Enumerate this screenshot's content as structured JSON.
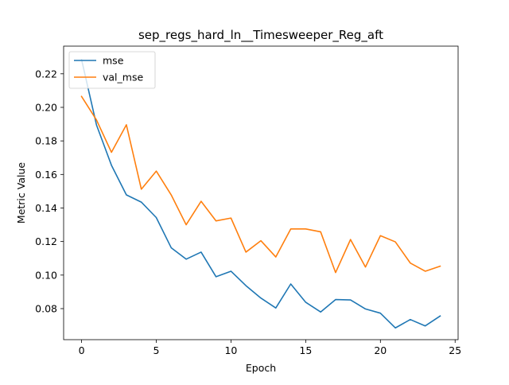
{
  "chart_data": {
    "type": "line",
    "title": "sep_regs_hard_ln__Timesweeper_Reg_aft",
    "xlabel": "Epoch",
    "ylabel": "Metric Value",
    "xlim": [
      -1.2,
      25.2
    ],
    "ylim": [
      0.0615,
      0.2365
    ],
    "xticks": [
      0,
      5,
      10,
      15,
      20,
      25
    ],
    "xtick_labels": [
      "0",
      "5",
      "10",
      "15",
      "20",
      "25"
    ],
    "yticks": [
      0.08,
      0.1,
      0.12,
      0.14,
      0.16,
      0.18,
      0.2,
      0.22
    ],
    "ytick_labels": [
      "0.08",
      "0.10",
      "0.12",
      "0.14",
      "0.16",
      "0.18",
      "0.20",
      "0.22"
    ],
    "grid": false,
    "legend_position": "top-left",
    "x": [
      0,
      1,
      2,
      3,
      4,
      5,
      6,
      7,
      8,
      9,
      10,
      11,
      12,
      13,
      14,
      15,
      16,
      17,
      18,
      19,
      20,
      21,
      22,
      23,
      24
    ],
    "series": [
      {
        "name": "mse",
        "color": "#1f77b4",
        "values": [
          0.2285,
          0.1895,
          0.1655,
          0.1478,
          0.1435,
          0.1343,
          0.1163,
          0.1095,
          0.1137,
          0.099,
          0.1023,
          0.0937,
          0.0863,
          0.0804,
          0.0947,
          0.0838,
          0.078,
          0.0854,
          0.0852,
          0.0798,
          0.0773,
          0.0685,
          0.0735,
          0.0697,
          0.0756
        ]
      },
      {
        "name": "val_mse",
        "color": "#ff7f0e",
        "values": [
          0.2065,
          0.1925,
          0.1732,
          0.1896,
          0.1512,
          0.162,
          0.1478,
          0.13,
          0.144,
          0.1323,
          0.134,
          0.1137,
          0.1205,
          0.1108,
          0.1275,
          0.1275,
          0.1258,
          0.1015,
          0.1212,
          0.1048,
          0.1235,
          0.1198,
          0.1072,
          0.1023,
          0.1053
        ]
      }
    ]
  }
}
